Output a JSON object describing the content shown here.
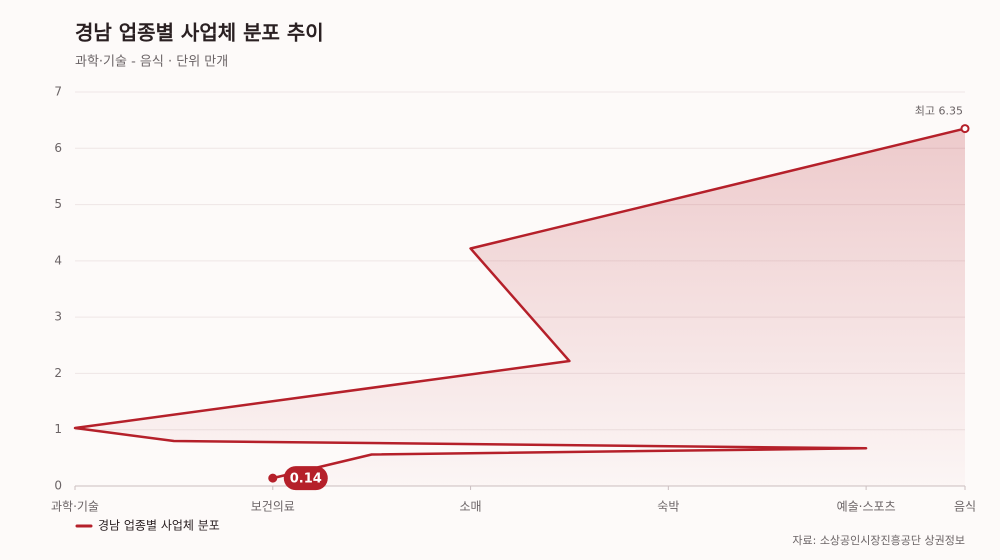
{
  "chart_data": {
    "type": "line",
    "title": "경남 업종별 사업체 분포 추이",
    "subtitle": "과학·기술 - 음식 · 단위 만개",
    "x": [
      2,
      3,
      8,
      1,
      0,
      5,
      4,
      9
    ],
    "series": [
      {
        "name": "경남 업종별 사업체 분포",
        "color": "#b5202a",
        "values": [
          0.14,
          0.56,
          0.67,
          0.8,
          1.03,
          2.22,
          4.22,
          6.35
        ]
      }
    ],
    "xlim": [
      0,
      9
    ],
    "xticks": [
      {
        "value": 0,
        "label": "과학·기술"
      },
      {
        "value": 2,
        "label": "보건의료"
      },
      {
        "value": 4,
        "label": "소매"
      },
      {
        "value": 6,
        "label": "숙박"
      },
      {
        "value": 8,
        "label": "예술·스포츠"
      },
      {
        "value": 9,
        "label": "음식"
      }
    ],
    "ylim": [
      0,
      7
    ],
    "yticks": [
      0,
      1,
      2,
      3,
      4,
      5,
      6,
      7
    ],
    "grid": true,
    "annotations": [
      {
        "text": "최고 6.35"
      }
    ],
    "source": "자료: 소상공인시장진흥공단 상권정보"
  }
}
